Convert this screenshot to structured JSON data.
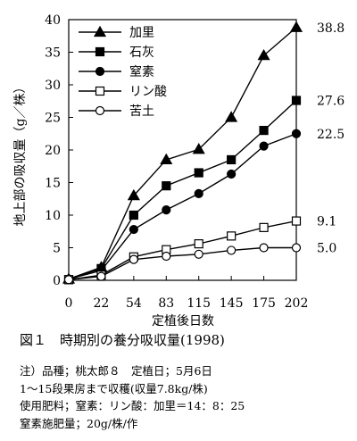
{
  "chart_data": {
    "type": "line",
    "xlabel": "定植後日数",
    "ylabel": "地上部の吸収量（g／株）",
    "categories": [
      "0",
      "22",
      "54",
      "83",
      "115",
      "145",
      "175",
      "202"
    ],
    "ylim": [
      0,
      40
    ],
    "yticks": [
      "0",
      "5",
      "10",
      "15",
      "20",
      "25",
      "30",
      "35",
      "40"
    ],
    "grid": false,
    "legend_position": "top-left",
    "series": [
      {
        "name": "加里",
        "marker": "filled-triangle",
        "values": [
          0.2,
          2.0,
          13.0,
          18.5,
          20.1,
          25.0,
          34.5,
          38.8
        ],
        "end_label": "38.8"
      },
      {
        "name": "石灰",
        "marker": "filled-square",
        "values": [
          0.1,
          1.8,
          10.0,
          14.5,
          16.5,
          18.5,
          23.0,
          27.6
        ],
        "end_label": "27.6"
      },
      {
        "name": "窒素",
        "marker": "filled-circle",
        "values": [
          0.2,
          1.5,
          7.8,
          10.8,
          13.3,
          16.3,
          20.6,
          22.5
        ],
        "end_label": "22.5"
      },
      {
        "name": "リン酸",
        "marker": "open-square",
        "values": [
          0.1,
          0.8,
          3.6,
          4.7,
          5.6,
          6.8,
          8.1,
          9.1
        ],
        "end_label": "9.1"
      },
      {
        "name": "苦土",
        "marker": "open-circle",
        "values": [
          0.1,
          0.6,
          3.2,
          3.7,
          4.0,
          4.6,
          5.0,
          5.0
        ],
        "end_label": "5.0"
      }
    ]
  },
  "caption": "図１　時期別の養分吸収量(1998)",
  "notes": [
    "注）品種；桃太郎８　定植日；5月6日",
    "1～15段果房まで収穫(収量7.8kg/株)",
    "使用肥料；窒素：リン酸：加里＝14：8：25",
    "窒素施肥量；20g/株/作"
  ]
}
